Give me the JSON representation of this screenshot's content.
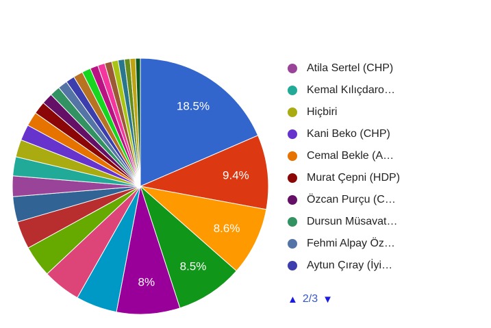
{
  "page": {
    "background": "#ffffff"
  },
  "chart_data": {
    "type": "pie",
    "title": "",
    "legend_position": "right",
    "labels_shown": "percent",
    "label_color": "#ffffff",
    "slice_border_color": "#ffffff",
    "slices": [
      {
        "name": null,
        "value": 18.5,
        "color": "#3366cc",
        "pct_label": "18.5%"
      },
      {
        "name": null,
        "value": 9.4,
        "color": "#dc3912",
        "pct_label": "9.4%"
      },
      {
        "name": null,
        "value": 8.6,
        "color": "#ff9900",
        "pct_label": "8.6%"
      },
      {
        "name": null,
        "value": 8.5,
        "color": "#109618",
        "pct_label": "8.5%"
      },
      {
        "name": null,
        "value": 8.0,
        "color": "#990099",
        "pct_label": "8%"
      },
      {
        "name": null,
        "value": 5.2,
        "color": "#0099c6",
        "pct_label": null
      },
      {
        "name": null,
        "value": 4.8,
        "color": "#dd4477",
        "pct_label": null
      },
      {
        "name": null,
        "value": 4.0,
        "color": "#66aa00",
        "pct_label": null
      },
      {
        "name": null,
        "value": 3.5,
        "color": "#b82e2e",
        "pct_label": null
      },
      {
        "name": null,
        "value": 3.2,
        "color": "#316395",
        "pct_label": null
      },
      {
        "name": "Atila Sertel (CHP)",
        "value": 2.6,
        "color": "#994499",
        "pct_label": null
      },
      {
        "name": "Kemal Kılıçdaro…",
        "value": 2.4,
        "color": "#22aa99",
        "pct_label": null
      },
      {
        "name": "Hiçbiri",
        "value": 2.2,
        "color": "#aaaa11",
        "pct_label": null
      },
      {
        "name": "Kani Beko (CHP)",
        "value": 2.0,
        "color": "#6633cc",
        "pct_label": null
      },
      {
        "name": "Cemal Bekle (A…",
        "value": 1.8,
        "color": "#e67300",
        "pct_label": null
      },
      {
        "name": "Murat Çepni (HDP)",
        "value": 1.6,
        "color": "#8b0707",
        "pct_label": null
      },
      {
        "name": "Özcan Purçu (C…",
        "value": 1.4,
        "color": "#651067",
        "pct_label": null
      },
      {
        "name": "Dursun Müsavat…",
        "value": 1.3,
        "color": "#329262",
        "pct_label": null
      },
      {
        "name": "Fehmi Alpay Öz…",
        "value": 1.2,
        "color": "#5574a6",
        "pct_label": null
      },
      {
        "name": "Aytun Çıray (İyi…",
        "value": 1.1,
        "color": "#3b3eac",
        "pct_label": null
      },
      {
        "name": null,
        "value": 1.2,
        "color": "#b77322",
        "pct_label": null
      },
      {
        "name": null,
        "value": 1.1,
        "color": "#16d620",
        "pct_label": null
      },
      {
        "name": null,
        "value": 1.0,
        "color": "#b91383",
        "pct_label": null
      },
      {
        "name": null,
        "value": 0.9,
        "color": "#f4359e",
        "pct_label": null
      },
      {
        "name": null,
        "value": 0.9,
        "color": "#9c5935",
        "pct_label": null
      },
      {
        "name": null,
        "value": 0.8,
        "color": "#a9c413",
        "pct_label": null
      },
      {
        "name": null,
        "value": 0.8,
        "color": "#2a778d",
        "pct_label": null
      },
      {
        "name": null,
        "value": 0.7,
        "color": "#668d1c",
        "pct_label": null
      },
      {
        "name": null,
        "value": 0.7,
        "color": "#bea413",
        "pct_label": null
      },
      {
        "name": null,
        "value": 0.6,
        "color": "#0c5922",
        "pct_label": null
      }
    ]
  },
  "legend": {
    "items": [
      {
        "label": "Atila Sertel (CHP)",
        "color": "#994499"
      },
      {
        "label": "Kemal Kılıçdaro…",
        "color": "#22aa99"
      },
      {
        "label": "Hiçbiri",
        "color": "#aaaa11"
      },
      {
        "label": "Kani Beko (CHP)",
        "color": "#6633cc"
      },
      {
        "label": "Cemal Bekle (A…",
        "color": "#e67300"
      },
      {
        "label": "Murat Çepni (HDP)",
        "color": "#8b0707"
      },
      {
        "label": "Özcan Purçu (C…",
        "color": "#651067"
      },
      {
        "label": "Dursun Müsavat…",
        "color": "#329262"
      },
      {
        "label": "Fehmi Alpay Öz…",
        "color": "#5574a6"
      },
      {
        "label": "Aytun Çıray (İyi…",
        "color": "#3b3eac"
      }
    ],
    "pagination": {
      "prev_glyph": "▲",
      "page_label": "2/3",
      "next_glyph": "▼",
      "arrow_color": "#1a1ae0",
      "text_color": "#3355cc"
    }
  }
}
